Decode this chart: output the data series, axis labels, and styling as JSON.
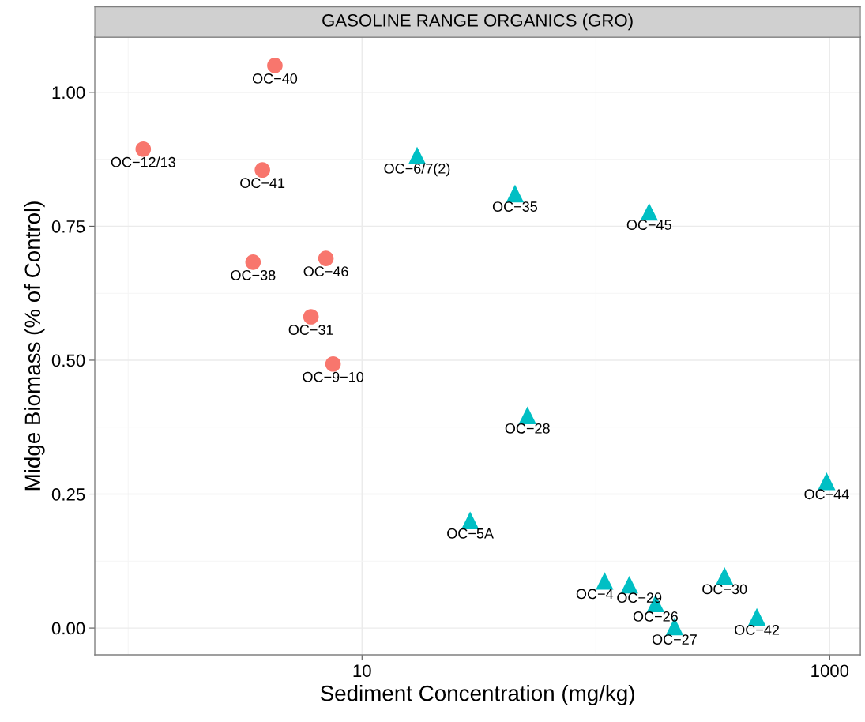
{
  "chart_data": {
    "type": "scatter",
    "title": "GASOLINE RANGE ORGANICS (GRO)",
    "xlabel": "Sediment Concentration (mg/kg)",
    "ylabel": "Midge Biomass (% of Control)",
    "log": "x",
    "xlim": [
      0.72,
      1352
    ],
    "xticks": [
      10,
      1000
    ],
    "ylim": [
      -0.05,
      1.103
    ],
    "yticks": [
      {
        "value": 0,
        "label": "0.00"
      },
      {
        "value": 0.25,
        "label": "0.25"
      },
      {
        "value": 0.5,
        "label": "0.50"
      },
      {
        "value": 0.75,
        "label": "0.75"
      },
      {
        "value": 1,
        "label": "1.00"
      }
    ],
    "grid": true,
    "series": [
      {
        "color": "#f8766d",
        "marker": "circle",
        "x": [
          4.24,
          1.16,
          3.75,
          3.42,
          7.01,
          6.05,
          7.52
        ],
        "values": [
          1.05,
          0.894,
          0.855,
          0.683,
          0.69,
          0.581,
          0.493
        ]
      },
      {
        "color": "#00bfc4",
        "marker": "triangle",
        "x": [
          17.2,
          45.1,
          169,
          51.0,
          970,
          29.0,
          109,
          139,
          180,
          217,
          355,
          488
        ],
        "values": [
          0.882,
          0.811,
          0.777,
          0.397,
          0.274,
          0.201,
          0.088,
          0.081,
          0.046,
          0.003,
          0.097,
          0.021
        ]
      }
    ],
    "annotations": [
      {
        "text": "OC−40",
        "x": 4.24,
        "y": 1.05
      },
      {
        "text": "OC−12/13",
        "x": 1.16,
        "y": 0.894
      },
      {
        "text": "OC−41",
        "x": 3.75,
        "y": 0.855
      },
      {
        "text": "OC−38",
        "x": 3.42,
        "y": 0.683
      },
      {
        "text": "OC−46",
        "x": 7.01,
        "y": 0.69
      },
      {
        "text": "OC−31",
        "x": 6.05,
        "y": 0.581
      },
      {
        "text": "OC−9−10",
        "x": 7.52,
        "y": 0.493
      },
      {
        "text": "OC−6/7(2)",
        "x": 17.2,
        "y": 0.882
      },
      {
        "text": "OC−35",
        "x": 45.1,
        "y": 0.811
      },
      {
        "text": "OC−45",
        "x": 169,
        "y": 0.777
      },
      {
        "text": "OC−28",
        "x": 51.0,
        "y": 0.397
      },
      {
        "text": "OC−44",
        "x": 970,
        "y": 0.274
      },
      {
        "text": "OC−5A",
        "x": 29.0,
        "y": 0.201
      },
      {
        "text": "OC−4",
        "x": 109,
        "y": 0.088
      },
      {
        "text": "OC−29",
        "x": 139,
        "y": 0.081
      },
      {
        "text": "OC−26",
        "x": 180,
        "y": 0.046
      },
      {
        "text": "OC−27",
        "x": 217,
        "y": 0.003
      },
      {
        "text": "OC−30",
        "x": 355,
        "y": 0.097
      },
      {
        "text": "OC−42",
        "x": 488,
        "y": 0.021
      }
    ]
  }
}
